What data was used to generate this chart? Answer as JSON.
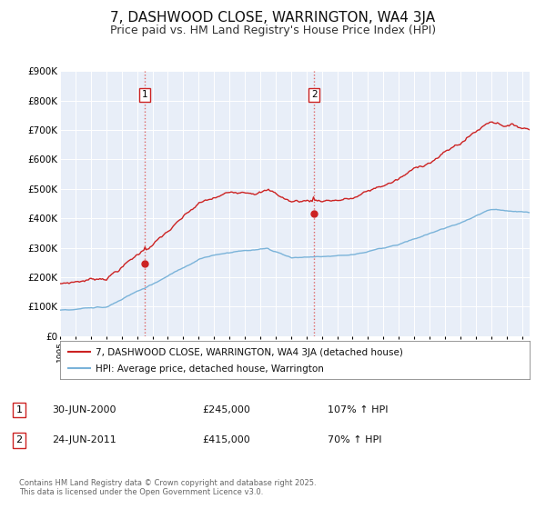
{
  "title": "7, DASHWOOD CLOSE, WARRINGTON, WA4 3JA",
  "subtitle": "Price paid vs. HM Land Registry's House Price Index (HPI)",
  "title_fontsize": 11,
  "subtitle_fontsize": 9,
  "background_color": "#ffffff",
  "plot_bg_color": "#e8eef8",
  "grid_color": "#ffffff",
  "ylim": [
    0,
    900000
  ],
  "yticks": [
    0,
    100000,
    200000,
    300000,
    400000,
    500000,
    600000,
    700000,
    800000,
    900000
  ],
  "ytick_labels": [
    "£0",
    "£100K",
    "£200K",
    "£300K",
    "£400K",
    "£500K",
    "£600K",
    "£700K",
    "£800K",
    "£900K"
  ],
  "hpi_color": "#7ab3d9",
  "price_color": "#cc2222",
  "marker_color": "#cc2222",
  "sale1_x": 2000.5,
  "sale1_y": 245000,
  "sale1_label": "1",
  "sale2_x": 2011.5,
  "sale2_y": 415000,
  "sale2_label": "2",
  "vline_color": "#dd6666",
  "vline_style": ":",
  "legend_label_price": "7, DASHWOOD CLOSE, WARRINGTON, WA4 3JA (detached house)",
  "legend_label_hpi": "HPI: Average price, detached house, Warrington",
  "annotation1_date": "30-JUN-2000",
  "annotation1_price": "£245,000",
  "annotation1_pct": "107% ↑ HPI",
  "annotation2_date": "24-JUN-2011",
  "annotation2_price": "£415,000",
  "annotation2_pct": "70% ↑ HPI",
  "footer": "Contains HM Land Registry data © Crown copyright and database right 2025.\nThis data is licensed under the Open Government Licence v3.0.",
  "xmin": 1995.0,
  "xmax": 2025.5
}
